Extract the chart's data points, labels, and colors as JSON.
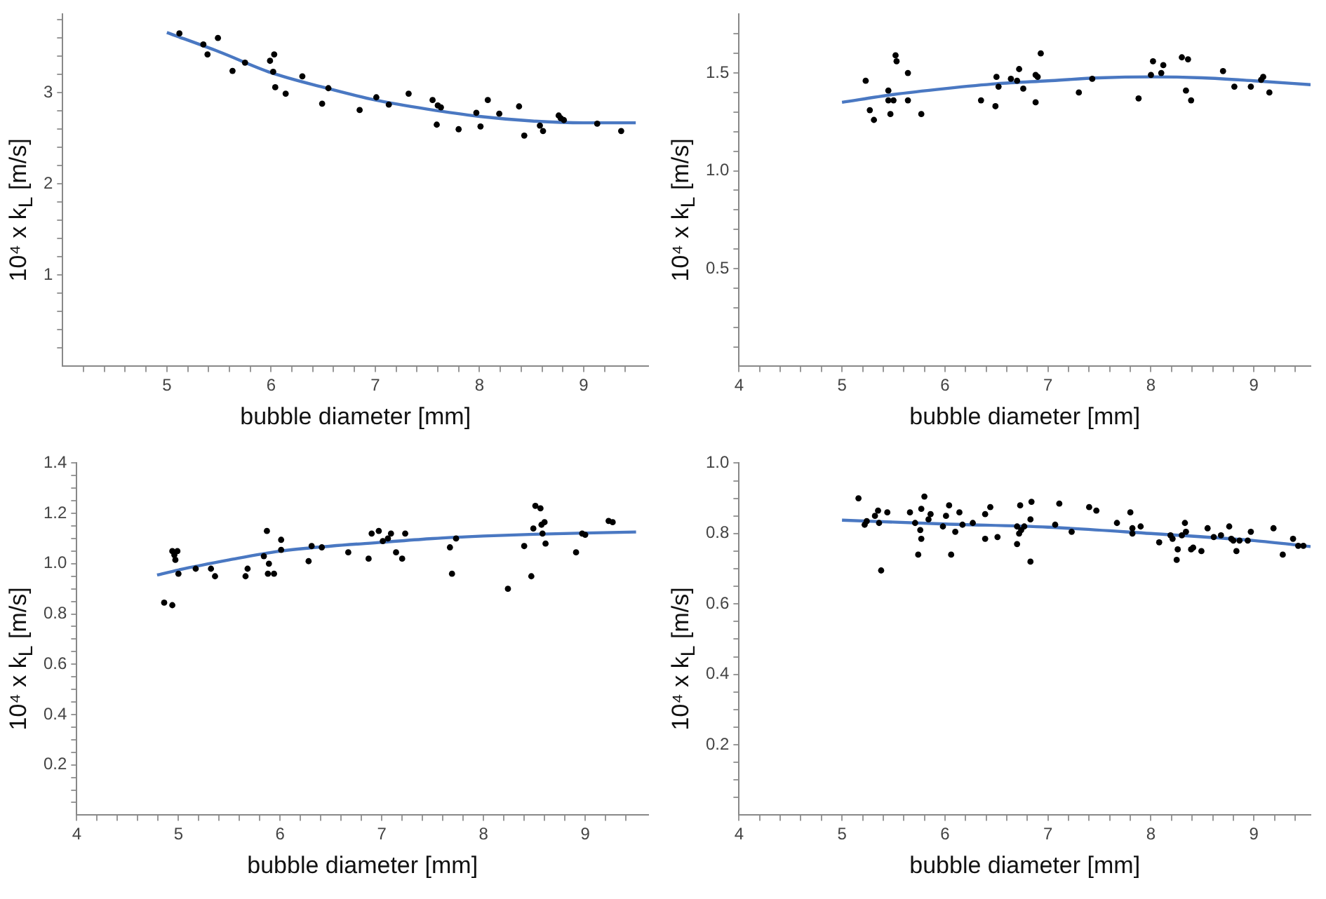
{
  "chart_data": [
    {
      "type": "scatter",
      "xlabel": "bubble diameter [mm]",
      "ylabel": "10⁴ x k$_{L}$ [m/s]",
      "xlim": [
        4,
        9.62
      ],
      "ylim": [
        0,
        3.86
      ],
      "xticks": [
        {
          "value": 4.2,
          "label": null
        },
        {
          "value": 4.4,
          "label": null
        },
        {
          "value": 4.6,
          "label": null
        },
        {
          "value": 4.8,
          "label": null
        },
        5,
        {
          "value": 5.2,
          "label": null
        },
        {
          "value": 5.4,
          "label": null
        },
        {
          "value": 5.6,
          "label": null
        },
        {
          "value": 5.8,
          "label": null
        },
        6,
        {
          "value": 6.2,
          "label": null
        },
        {
          "value": 6.4,
          "label": null
        },
        {
          "value": 6.6,
          "label": null
        },
        {
          "value": 6.8,
          "label": null
        },
        7,
        {
          "value": 7.2,
          "label": null
        },
        {
          "value": 7.4,
          "label": null
        },
        {
          "value": 7.6,
          "label": null
        },
        {
          "value": 7.8,
          "label": null
        },
        8,
        {
          "value": 8.2,
          "label": null
        },
        {
          "value": 8.4,
          "label": null
        },
        {
          "value": 8.6,
          "label": null
        },
        {
          "value": 8.8,
          "label": null
        },
        9,
        {
          "value": 9.2,
          "label": null
        },
        {
          "value": 9.4,
          "label": null
        }
      ],
      "yticks": [
        {
          "value": 0.2,
          "label": null
        },
        {
          "value": 0.4,
          "label": null
        },
        {
          "value": 0.6,
          "label": null
        },
        {
          "value": 0.8,
          "label": null
        },
        1,
        {
          "value": 1.2,
          "label": null
        },
        {
          "value": 1.4,
          "label": null
        },
        {
          "value": 1.6,
          "label": null
        },
        {
          "value": 1.8,
          "label": null
        },
        2,
        {
          "value": 2.2,
          "label": null
        },
        {
          "value": 2.4,
          "label": null
        },
        {
          "value": 2.6,
          "label": null
        },
        {
          "value": 2.8,
          "label": null
        },
        3,
        {
          "value": 3.2,
          "label": null
        },
        {
          "value": 3.4,
          "label": null
        },
        {
          "value": 3.6,
          "label": null
        },
        {
          "value": 3.8,
          "label": null
        }
      ],
      "grid": false,
      "legend": false,
      "marker": "circle",
      "series": [
        {
          "type": "scatter",
          "color": "#000000",
          "x": [
            5.12,
            5.35,
            5.39,
            5.49,
            5.63,
            5.75,
            5.99,
            6.03,
            6.02,
            6.04,
            6.14,
            6.3,
            6.49,
            6.55,
            6.85,
            7.01,
            7.13,
            7.32,
            7.55,
            7.6,
            7.63,
            7.59,
            7.8,
            7.97,
            8.01,
            8.08,
            8.19,
            8.38,
            8.43,
            8.58,
            8.61,
            8.76,
            8.78,
            8.81,
            9.13,
            9.36
          ],
          "values": [
            3.65,
            3.53,
            3.42,
            3.6,
            3.24,
            3.33,
            3.35,
            3.42,
            3.23,
            3.06,
            2.99,
            3.18,
            2.88,
            3.05,
            2.81,
            2.95,
            2.87,
            2.99,
            2.92,
            2.86,
            2.84,
            2.65,
            2.6,
            2.78,
            2.63,
            2.92,
            2.77,
            2.85,
            2.53,
            2.64,
            2.58,
            2.75,
            2.72,
            2.7,
            2.66,
            2.58
          ]
        },
        {
          "type": "line",
          "marker": "none",
          "color": "#4a78c2",
          "x": [
            5,
            5.5,
            6,
            6.5,
            7,
            7.5,
            8,
            8.5,
            9,
            9.5
          ],
          "values": [
            3.66,
            3.45,
            3.22,
            3.06,
            2.92,
            2.82,
            2.74,
            2.69,
            2.67,
            2.67
          ]
        }
      ]
    },
    {
      "type": "scatter",
      "xlabel": "bubble diameter [mm]",
      "ylabel": "10⁴ x k$_{L}$ [m/s]",
      "xlim": [
        4,
        9.55
      ],
      "ylim": [
        0,
        1.8
      ],
      "xticks": [
        4,
        {
          "value": 4.2,
          "label": null
        },
        {
          "value": 4.4,
          "label": null
        },
        {
          "value": 4.6,
          "label": null
        },
        {
          "value": 4.8,
          "label": null
        },
        5,
        {
          "value": 5.2,
          "label": null
        },
        {
          "value": 5.4,
          "label": null
        },
        {
          "value": 5.6,
          "label": null
        },
        {
          "value": 5.8,
          "label": null
        },
        6,
        {
          "value": 6.2,
          "label": null
        },
        {
          "value": 6.4,
          "label": null
        },
        {
          "value": 6.6,
          "label": null
        },
        {
          "value": 6.8,
          "label": null
        },
        7,
        {
          "value": 7.2,
          "label": null
        },
        {
          "value": 7.4,
          "label": null
        },
        {
          "value": 7.6,
          "label": null
        },
        {
          "value": 7.8,
          "label": null
        },
        8,
        {
          "value": 8.2,
          "label": null
        },
        {
          "value": 8.4,
          "label": null
        },
        {
          "value": 8.6,
          "label": null
        },
        {
          "value": 8.8,
          "label": null
        },
        9,
        {
          "value": 9.2,
          "label": null
        },
        {
          "value": 9.4,
          "label": null
        }
      ],
      "yticks": [
        {
          "value": 0.1,
          "label": null
        },
        {
          "value": 0.2,
          "label": null
        },
        {
          "value": 0.3,
          "label": null
        },
        {
          "value": 0.4,
          "label": null
        },
        0.5,
        {
          "value": 0.6,
          "label": null
        },
        {
          "value": 0.7,
          "label": null
        },
        {
          "value": 0.8,
          "label": null
        },
        {
          "value": 0.9,
          "label": null
        },
        {
          "value": 1,
          "label": "1.0"
        },
        {
          "value": 1.1,
          "label": null
        },
        {
          "value": 1.2,
          "label": null
        },
        {
          "value": 1.3,
          "label": null
        },
        {
          "value": 1.4,
          "label": null
        },
        1.5,
        {
          "value": 1.6,
          "label": null
        },
        {
          "value": 1.7,
          "label": null
        }
      ],
      "grid": false,
      "legend": false,
      "marker": "circle",
      "series": [
        {
          "type": "scatter",
          "color": "#000000",
          "x": [
            5.23,
            5.27,
            5.31,
            5.45,
            5.45,
            5.47,
            5.5,
            5.52,
            5.53,
            5.64,
            5.64,
            5.77,
            6.35,
            6.49,
            6.5,
            6.52,
            6.64,
            6.7,
            6.72,
            6.76,
            6.88,
            6.9,
            6.88,
            6.93,
            7.3,
            7.43,
            7.88,
            8.0,
            8.02,
            8.1,
            8.12,
            8.3,
            8.36,
            8.34,
            8.39,
            8.7,
            8.81,
            8.97,
            9.07,
            9.09,
            9.15
          ],
          "values": [
            1.46,
            1.31,
            1.26,
            1.41,
            1.36,
            1.29,
            1.36,
            1.59,
            1.56,
            1.5,
            1.36,
            1.29,
            1.36,
            1.33,
            1.48,
            1.43,
            1.47,
            1.46,
            1.52,
            1.42,
            1.49,
            1.48,
            1.35,
            1.6,
            1.4,
            1.47,
            1.37,
            1.49,
            1.56,
            1.5,
            1.54,
            1.58,
            1.57,
            1.41,
            1.36,
            1.51,
            1.43,
            1.43,
            1.465,
            1.48,
            1.4
          ]
        },
        {
          "type": "line",
          "marker": "none",
          "color": "#4a78c2",
          "x": [
            5,
            5.5,
            6,
            6.5,
            7,
            7.5,
            8,
            8.5,
            9,
            9.55
          ],
          "values": [
            1.35,
            1.39,
            1.42,
            1.445,
            1.46,
            1.475,
            1.48,
            1.475,
            1.46,
            1.44
          ]
        }
      ]
    },
    {
      "type": "scatter",
      "xlabel": "bubble diameter [mm]",
      "ylabel": "10⁴ x k$_{L}$ [m/s]",
      "xlim": [
        4,
        9.62
      ],
      "ylim": [
        0,
        1.4
      ],
      "xticks": [
        4,
        {
          "value": 4.2,
          "label": null
        },
        {
          "value": 4.4,
          "label": null
        },
        {
          "value": 4.6,
          "label": null
        },
        {
          "value": 4.8,
          "label": null
        },
        5,
        {
          "value": 5.2,
          "label": null
        },
        {
          "value": 5.4,
          "label": null
        },
        {
          "value": 5.6,
          "label": null
        },
        {
          "value": 5.8,
          "label": null
        },
        6,
        {
          "value": 6.2,
          "label": null
        },
        {
          "value": 6.4,
          "label": null
        },
        {
          "value": 6.6,
          "label": null
        },
        {
          "value": 6.8,
          "label": null
        },
        7,
        {
          "value": 7.2,
          "label": null
        },
        {
          "value": 7.4,
          "label": null
        },
        {
          "value": 7.6,
          "label": null
        },
        {
          "value": 7.8,
          "label": null
        },
        8,
        {
          "value": 8.2,
          "label": null
        },
        {
          "value": 8.4,
          "label": null
        },
        {
          "value": 8.6,
          "label": null
        },
        {
          "value": 8.8,
          "label": null
        },
        9,
        {
          "value": 9.2,
          "label": null
        },
        {
          "value": 9.4,
          "label": null
        }
      ],
      "yticks": [
        {
          "value": 0.05,
          "label": null
        },
        {
          "value": 0.1,
          "label": null
        },
        {
          "value": 0.15,
          "label": null
        },
        0.2,
        {
          "value": 0.25,
          "label": null
        },
        {
          "value": 0.3,
          "label": null
        },
        {
          "value": 0.35,
          "label": null
        },
        0.4,
        {
          "value": 0.45,
          "label": null
        },
        {
          "value": 0.5,
          "label": null
        },
        {
          "value": 0.55,
          "label": null
        },
        0.6,
        {
          "value": 0.65,
          "label": null
        },
        {
          "value": 0.7,
          "label": null
        },
        {
          "value": 0.75,
          "label": null
        },
        0.8,
        {
          "value": 0.85,
          "label": null
        },
        {
          "value": 0.9,
          "label": null
        },
        {
          "value": 0.95,
          "label": null
        },
        {
          "value": 1,
          "label": "1.0"
        },
        {
          "value": 1.05,
          "label": null
        },
        {
          "value": 1.1,
          "label": null
        },
        {
          "value": 1.15,
          "label": null
        },
        1.2,
        {
          "value": 1.25,
          "label": null
        },
        {
          "value": 1.3,
          "label": null
        },
        {
          "value": 1.35,
          "label": null
        },
        1.4
      ],
      "grid": false,
      "legend": false,
      "marker": "circle",
      "series": [
        {
          "type": "scatter",
          "color": "#000000",
          "x": [
            4.86,
            4.94,
            4.94,
            4.96,
            4.97,
            4.99,
            5.0,
            5.17,
            5.32,
            5.36,
            5.66,
            5.68,
            5.84,
            5.87,
            5.89,
            5.88,
            5.94,
            6.01,
            6.01,
            6.28,
            6.31,
            6.41,
            6.67,
            6.87,
            6.9,
            6.97,
            7.01,
            7.06,
            7.09,
            7.14,
            7.2,
            7.23,
            7.67,
            7.69,
            7.73,
            8.24,
            8.4,
            8.47,
            8.49,
            8.51,
            8.56,
            8.57,
            8.6,
            8.58,
            8.61,
            8.91,
            8.97,
            9.0,
            9.23,
            9.27
          ],
          "values": [
            0.845,
            0.835,
            1.05,
            1.035,
            1.015,
            1.05,
            0.96,
            0.98,
            0.98,
            0.95,
            0.95,
            0.98,
            1.03,
            1.13,
            1.0,
            0.96,
            0.96,
            1.095,
            1.055,
            1.01,
            1.07,
            1.065,
            1.045,
            1.02,
            1.12,
            1.13,
            1.09,
            1.1,
            1.12,
            1.045,
            1.02,
            1.12,
            1.065,
            0.96,
            1.1,
            0.9,
            1.07,
            0.95,
            1.14,
            1.23,
            1.22,
            1.155,
            1.165,
            1.12,
            1.08,
            1.045,
            1.12,
            1.115,
            1.17,
            1.165
          ]
        },
        {
          "type": "line",
          "marker": "none",
          "color": "#4a78c2",
          "x": [
            4.79,
            5,
            5.5,
            6,
            6.5,
            7,
            7.5,
            8,
            8.5,
            9,
            9.5
          ],
          "values": [
            0.955,
            0.975,
            1.015,
            1.05,
            1.07,
            1.085,
            1.1,
            1.11,
            1.117,
            1.122,
            1.126
          ]
        }
      ]
    },
    {
      "type": "scatter",
      "xlabel": "bubble diameter [mm]",
      "ylabel": "10⁴ x k$_{L}$ [m/s]",
      "xlim": [
        4,
        9.55
      ],
      "ylim": [
        0,
        1
      ],
      "xticks": [
        4,
        {
          "value": 4.2,
          "label": null
        },
        {
          "value": 4.4,
          "label": null
        },
        {
          "value": 4.6,
          "label": null
        },
        {
          "value": 4.8,
          "label": null
        },
        5,
        {
          "value": 5.2,
          "label": null
        },
        {
          "value": 5.4,
          "label": null
        },
        {
          "value": 5.6,
          "label": null
        },
        {
          "value": 5.8,
          "label": null
        },
        6,
        {
          "value": 6.2,
          "label": null
        },
        {
          "value": 6.4,
          "label": null
        },
        {
          "value": 6.6,
          "label": null
        },
        {
          "value": 6.8,
          "label": null
        },
        7,
        {
          "value": 7.2,
          "label": null
        },
        {
          "value": 7.4,
          "label": null
        },
        {
          "value": 7.6,
          "label": null
        },
        {
          "value": 7.8,
          "label": null
        },
        8,
        {
          "value": 8.2,
          "label": null
        },
        {
          "value": 8.4,
          "label": null
        },
        {
          "value": 8.6,
          "label": null
        },
        {
          "value": 8.8,
          "label": null
        },
        9,
        {
          "value": 9.2,
          "label": null
        },
        {
          "value": 9.4,
          "label": null
        }
      ],
      "yticks": [
        {
          "value": 0.05,
          "label": null
        },
        {
          "value": 0.1,
          "label": null
        },
        {
          "value": 0.15,
          "label": null
        },
        0.2,
        {
          "value": 0.25,
          "label": null
        },
        {
          "value": 0.3,
          "label": null
        },
        {
          "value": 0.35,
          "label": null
        },
        0.4,
        {
          "value": 0.45,
          "label": null
        },
        {
          "value": 0.5,
          "label": null
        },
        {
          "value": 0.55,
          "label": null
        },
        0.6,
        {
          "value": 0.65,
          "label": null
        },
        {
          "value": 0.7,
          "label": null
        },
        {
          "value": 0.75,
          "label": null
        },
        0.8,
        {
          "value": 0.85,
          "label": null
        },
        {
          "value": 0.9,
          "label": null
        },
        {
          "value": 0.95,
          "label": null
        },
        {
          "value": 1,
          "label": "1.0"
        }
      ],
      "grid": false,
      "legend": false,
      "marker": "circle",
      "series": [
        {
          "type": "scatter",
          "color": "#000000",
          "x": [
            5.16,
            5.22,
            5.24,
            5.32,
            5.35,
            5.36,
            5.38,
            5.44,
            5.66,
            5.71,
            5.74,
            5.76,
            5.77,
            5.77,
            5.8,
            5.84,
            5.86,
            5.98,
            6.01,
            6.04,
            6.06,
            6.1,
            6.14,
            6.17,
            6.27,
            6.39,
            6.39,
            6.44,
            6.51,
            6.7,
            6.7,
            6.72,
            6.73,
            6.74,
            6.77,
            6.83,
            6.83,
            6.84,
            7.07,
            7.11,
            7.23,
            7.4,
            7.47,
            7.67,
            7.8,
            7.82,
            7.82,
            7.9,
            8.08,
            8.19,
            8.21,
            8.25,
            8.26,
            8.3,
            8.33,
            8.34,
            8.39,
            8.41,
            8.49,
            8.55,
            8.61,
            8.68,
            8.76,
            8.78,
            8.8,
            8.83,
            8.86,
            8.94,
            8.97,
            9.19,
            9.28,
            9.38,
            9.43,
            9.48
          ],
          "values": [
            0.9,
            0.825,
            0.835,
            0.85,
            0.865,
            0.83,
            0.695,
            0.86,
            0.86,
            0.83,
            0.74,
            0.81,
            0.87,
            0.785,
            0.905,
            0.84,
            0.855,
            0.82,
            0.85,
            0.88,
            0.74,
            0.805,
            0.86,
            0.825,
            0.83,
            0.855,
            0.785,
            0.875,
            0.79,
            0.77,
            0.82,
            0.8,
            0.88,
            0.81,
            0.82,
            0.84,
            0.72,
            0.89,
            0.825,
            0.885,
            0.805,
            0.875,
            0.865,
            0.83,
            0.86,
            0.815,
            0.8,
            0.82,
            0.775,
            0.795,
            0.785,
            0.725,
            0.755,
            0.795,
            0.83,
            0.805,
            0.755,
            0.76,
            0.75,
            0.815,
            0.79,
            0.795,
            0.82,
            0.785,
            0.78,
            0.75,
            0.78,
            0.78,
            0.805,
            0.815,
            0.74,
            0.785,
            0.765,
            0.765
          ]
        },
        {
          "type": "line",
          "marker": "none",
          "color": "#4a78c2",
          "x": [
            5,
            6,
            7,
            8,
            9,
            9.55
          ],
          "values": [
            0.838,
            0.827,
            0.818,
            0.8,
            0.78,
            0.763
          ]
        }
      ]
    }
  ]
}
